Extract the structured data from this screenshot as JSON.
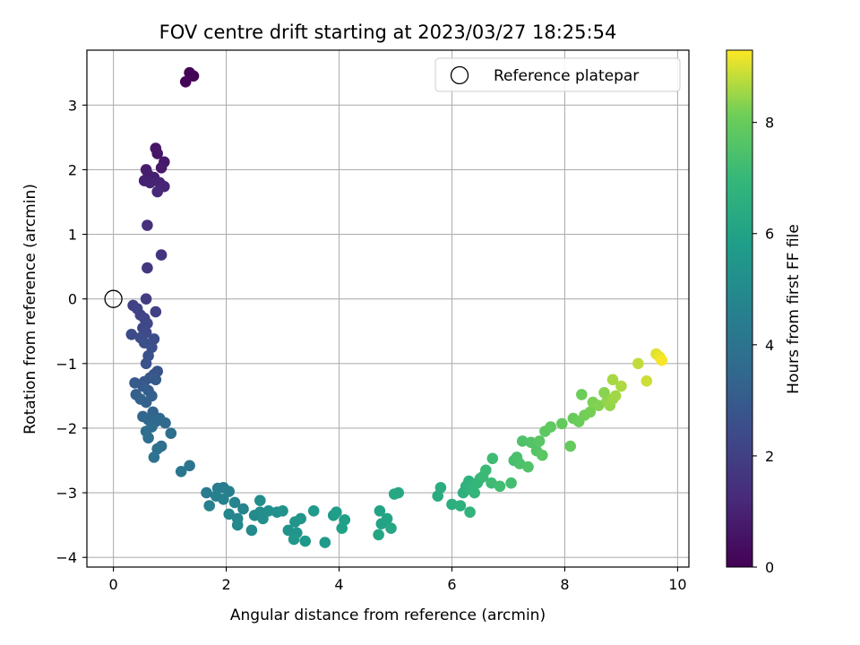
{
  "chart_data": {
    "type": "scatter",
    "title": "FOV centre drift starting at 2023/03/27 18:25:54",
    "xlabel": "Angular distance from reference (arcmin)",
    "ylabel": "Rotation from reference (arcmin)",
    "xlim": [
      -0.47,
      10.2
    ],
    "ylim": [
      -4.15,
      3.85
    ],
    "xticks": [
      0,
      2,
      4,
      6,
      8,
      10
    ],
    "yticks": [
      -4,
      -3,
      -2,
      -1,
      0,
      1,
      2,
      3
    ],
    "grid": true,
    "legend": {
      "placement": "top-right",
      "entries": [
        "Reference platepar"
      ]
    },
    "reference_point": {
      "x": 0,
      "y": 0,
      "label": "Reference platepar"
    },
    "colorbar": {
      "label": "Hours from first FF file",
      "range": [
        0,
        9.3
      ],
      "ticks": [
        0,
        2,
        4,
        6,
        8
      ],
      "colormap": "viridis"
    },
    "series": [
      {
        "color_by": "hours",
        "points": [
          [
            1.35,
            3.5,
            0.05
          ],
          [
            1.42,
            3.45,
            0.1
          ],
          [
            1.28,
            3.36,
            0.15
          ],
          [
            0.75,
            2.33,
            0.6
          ],
          [
            0.78,
            2.25,
            0.65
          ],
          [
            0.9,
            2.12,
            0.7
          ],
          [
            0.85,
            2.03,
            0.75
          ],
          [
            0.58,
            2.0,
            0.8
          ],
          [
            0.62,
            1.92,
            0.85
          ],
          [
            0.72,
            1.88,
            0.9
          ],
          [
            0.55,
            1.83,
            0.95
          ],
          [
            0.65,
            1.8,
            1.0
          ],
          [
            0.82,
            1.8,
            1.05
          ],
          [
            0.9,
            1.74,
            1.1
          ],
          [
            0.78,
            1.66,
            1.15
          ],
          [
            0.6,
            1.14,
            1.4
          ],
          [
            0.85,
            0.68,
            1.6
          ],
          [
            0.6,
            0.48,
            1.7
          ],
          [
            0.58,
            0.0,
            1.9
          ],
          [
            0.35,
            -0.1,
            2.0
          ],
          [
            0.75,
            -0.2,
            2.05
          ],
          [
            0.42,
            -0.15,
            2.1
          ],
          [
            0.48,
            -0.25,
            2.15
          ],
          [
            0.55,
            -0.3,
            2.2
          ],
          [
            0.6,
            -0.38,
            2.25
          ],
          [
            0.52,
            -0.45,
            2.3
          ],
          [
            0.58,
            -0.52,
            2.35
          ],
          [
            0.32,
            -0.55,
            2.4
          ],
          [
            0.48,
            -0.6,
            2.45
          ],
          [
            0.72,
            -0.62,
            2.5
          ],
          [
            0.55,
            -0.68,
            2.55
          ],
          [
            0.68,
            -0.75,
            2.6
          ],
          [
            0.62,
            -0.88,
            2.65
          ],
          [
            0.58,
            -1.0,
            2.7
          ],
          [
            0.78,
            -1.12,
            2.75
          ],
          [
            0.72,
            -1.17,
            2.8
          ],
          [
            0.65,
            -1.22,
            2.85
          ],
          [
            0.55,
            -1.28,
            2.9
          ],
          [
            0.75,
            -1.25,
            2.95
          ],
          [
            0.38,
            -1.3,
            3.0
          ],
          [
            0.52,
            -1.35,
            3.05
          ],
          [
            0.62,
            -1.42,
            3.1
          ],
          [
            0.4,
            -1.48,
            3.15
          ],
          [
            0.68,
            -1.5,
            3.2
          ],
          [
            0.48,
            -1.55,
            3.25
          ],
          [
            0.58,
            -1.6,
            3.3
          ],
          [
            0.7,
            -1.75,
            3.35
          ],
          [
            0.52,
            -1.82,
            3.4
          ],
          [
            0.62,
            -1.87,
            3.45
          ],
          [
            0.75,
            -1.9,
            3.5
          ],
          [
            0.82,
            -1.85,
            3.55
          ],
          [
            0.92,
            -1.92,
            3.6
          ],
          [
            0.68,
            -1.98,
            3.65
          ],
          [
            0.58,
            -2.05,
            3.7
          ],
          [
            0.62,
            -2.15,
            3.75
          ],
          [
            1.02,
            -2.08,
            3.8
          ],
          [
            0.85,
            -2.28,
            3.85
          ],
          [
            0.78,
            -2.32,
            3.9
          ],
          [
            0.72,
            -2.45,
            3.95
          ],
          [
            1.35,
            -2.58,
            4.05
          ],
          [
            1.2,
            -2.67,
            4.1
          ],
          [
            1.65,
            -3.0,
            4.35
          ],
          [
            1.85,
            -2.93,
            4.4
          ],
          [
            1.95,
            -2.92,
            4.45
          ],
          [
            2.05,
            -2.98,
            4.5
          ],
          [
            1.82,
            -3.05,
            4.55
          ],
          [
            1.95,
            -3.1,
            4.6
          ],
          [
            1.7,
            -3.2,
            4.65
          ],
          [
            2.15,
            -3.15,
            4.7
          ],
          [
            2.3,
            -3.25,
            4.75
          ],
          [
            2.05,
            -3.33,
            4.8
          ],
          [
            2.2,
            -3.4,
            4.85
          ],
          [
            2.2,
            -3.5,
            4.9
          ],
          [
            2.45,
            -3.58,
            4.95
          ],
          [
            2.5,
            -3.35,
            5.0
          ],
          [
            2.6,
            -3.3,
            5.05
          ],
          [
            2.6,
            -3.12,
            5.1
          ],
          [
            2.65,
            -3.4,
            5.15
          ],
          [
            2.75,
            -3.28,
            5.2
          ],
          [
            2.9,
            -3.3,
            5.25
          ],
          [
            3.0,
            -3.28,
            5.3
          ],
          [
            3.1,
            -3.58,
            5.35
          ],
          [
            3.22,
            -3.45,
            5.4
          ],
          [
            3.25,
            -3.62,
            5.45
          ],
          [
            3.32,
            -3.4,
            5.5
          ],
          [
            3.2,
            -3.72,
            5.55
          ],
          [
            3.4,
            -3.75,
            5.6
          ],
          [
            3.55,
            -3.28,
            5.65
          ],
          [
            3.75,
            -3.77,
            5.7
          ],
          [
            3.9,
            -3.35,
            5.75
          ],
          [
            3.95,
            -3.3,
            5.8
          ],
          [
            4.1,
            -3.42,
            5.85
          ],
          [
            4.05,
            -3.55,
            5.9
          ],
          [
            4.72,
            -3.28,
            6.0
          ],
          [
            4.75,
            -3.48,
            6.05
          ],
          [
            4.85,
            -3.4,
            6.1
          ],
          [
            4.7,
            -3.65,
            6.15
          ],
          [
            4.92,
            -3.55,
            6.2
          ],
          [
            4.98,
            -3.02,
            6.25
          ],
          [
            5.05,
            -3.0,
            6.3
          ],
          [
            5.75,
            -3.05,
            6.45
          ],
          [
            5.8,
            -2.92,
            6.5
          ],
          [
            6.0,
            -3.18,
            6.55
          ],
          [
            6.15,
            -3.2,
            6.6
          ],
          [
            6.2,
            -3.0,
            6.65
          ],
          [
            6.25,
            -2.9,
            6.7
          ],
          [
            6.3,
            -2.82,
            6.75
          ],
          [
            6.32,
            -3.3,
            6.8
          ],
          [
            6.35,
            -2.95,
            6.85
          ],
          [
            6.4,
            -3.0,
            6.9
          ],
          [
            6.45,
            -2.85,
            6.95
          ],
          [
            6.5,
            -2.78,
            7.0
          ],
          [
            6.55,
            -2.75,
            7.05
          ],
          [
            6.6,
            -2.65,
            7.1
          ],
          [
            6.7,
            -2.85,
            7.15
          ],
          [
            6.72,
            -2.47,
            7.2
          ],
          [
            6.85,
            -2.9,
            7.25
          ],
          [
            7.05,
            -2.85,
            7.3
          ],
          [
            7.1,
            -2.5,
            7.35
          ],
          [
            7.15,
            -2.45,
            7.4
          ],
          [
            7.2,
            -2.55,
            7.45
          ],
          [
            7.25,
            -2.2,
            7.5
          ],
          [
            7.35,
            -2.6,
            7.55
          ],
          [
            7.4,
            -2.22,
            7.6
          ],
          [
            7.5,
            -2.35,
            7.65
          ],
          [
            7.55,
            -2.2,
            7.7
          ],
          [
            7.6,
            -2.42,
            7.75
          ],
          [
            7.65,
            -2.05,
            7.8
          ],
          [
            7.75,
            -1.98,
            7.85
          ],
          [
            7.95,
            -1.93,
            7.9
          ],
          [
            8.1,
            -2.28,
            7.95
          ],
          [
            8.15,
            -1.85,
            8.0
          ],
          [
            8.25,
            -1.9,
            8.05
          ],
          [
            8.3,
            -1.48,
            8.1
          ],
          [
            8.35,
            -1.8,
            8.15
          ],
          [
            8.45,
            -1.75,
            8.2
          ],
          [
            8.5,
            -1.6,
            8.25
          ],
          [
            8.6,
            -1.65,
            8.3
          ],
          [
            8.7,
            -1.45,
            8.35
          ],
          [
            8.75,
            -1.58,
            8.4
          ],
          [
            8.8,
            -1.65,
            8.45
          ],
          [
            8.85,
            -1.55,
            8.5
          ],
          [
            8.9,
            -1.5,
            8.55
          ],
          [
            8.85,
            -1.25,
            8.6
          ],
          [
            9.0,
            -1.35,
            8.65
          ],
          [
            9.3,
            -1.0,
            8.8
          ],
          [
            9.45,
            -1.27,
            8.9
          ],
          [
            9.62,
            -0.85,
            9.05
          ],
          [
            9.68,
            -0.9,
            9.15
          ],
          [
            9.72,
            -0.95,
            9.25
          ]
        ]
      }
    ]
  }
}
